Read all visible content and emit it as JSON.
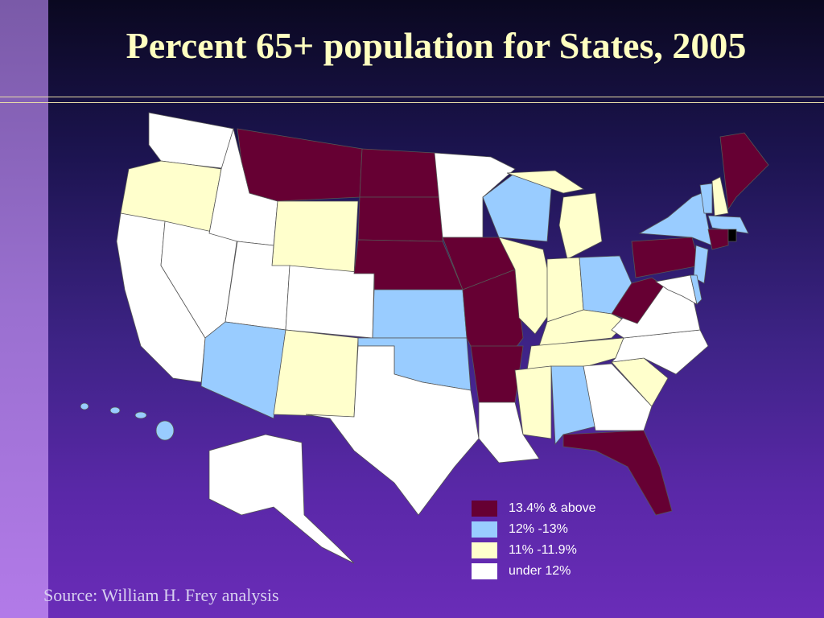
{
  "title": "Percent 65+ population for States, 2005",
  "legend": {
    "items": [
      {
        "label": "13.4% & above",
        "color": "#660033"
      },
      {
        "label": "12% -13%",
        "color": "#99ccff"
      },
      {
        "label": "11% -11.9%",
        "color": "#ffffcc"
      },
      {
        "label": "under 12%",
        "color": "#ffffff"
      }
    ]
  },
  "source": "Source: William H. Frey analysis"
}
